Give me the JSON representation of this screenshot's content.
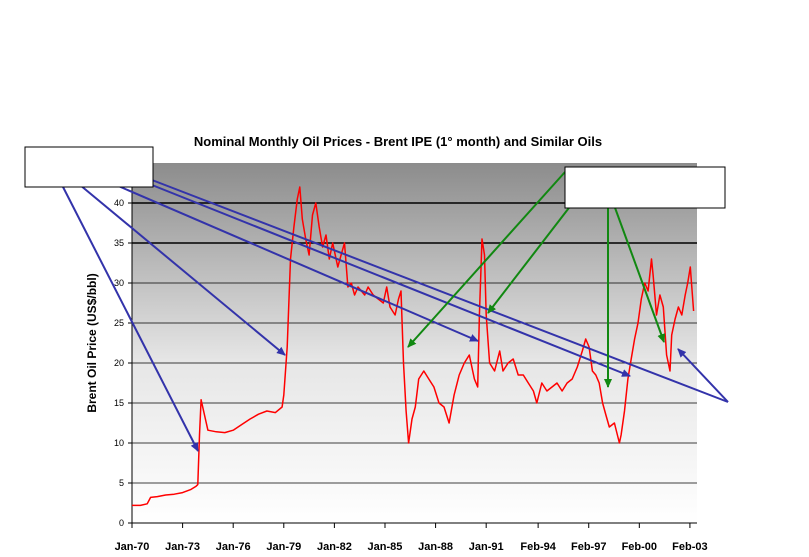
{
  "chart_data": {
    "type": "line",
    "title": "Nominal Monthly Oil Prices - Brent IPE (1° month) and Similar Oils",
    "ylabel": "Brent Oil Price (US$/bbl)",
    "xlabel": "",
    "ylim": [
      0,
      45
    ],
    "yticks": [
      0,
      5,
      10,
      15,
      20,
      25,
      30,
      35,
      40
    ],
    "xlim": [
      1970.0,
      2003.5
    ],
    "xtick_labels": [
      "Jan-70",
      "Jan-73",
      "Jan-76",
      "Jan-79",
      "Jan-82",
      "Jan-85",
      "Jan-88",
      "Jan-91",
      "Feb-94",
      "Feb-97",
      "Feb-00",
      "Feb-03"
    ],
    "xtick_values": [
      1970.0,
      1973.0,
      1976.0,
      1979.0,
      1982.0,
      1985.0,
      1988.0,
      1991.0,
      1994.08,
      1997.08,
      2000.08,
      2003.08
    ],
    "grid": "horizontal",
    "series_color": "#ff0000",
    "series": [
      {
        "x": [
          1970.0,
          1970.5,
          1970.9,
          1971.1,
          1971.5,
          1972.0,
          1972.5,
          1973.0,
          1973.5,
          1973.8,
          1973.9,
          1974.0,
          1974.1,
          1974.3,
          1974.5,
          1975.0,
          1975.5,
          1976.0,
          1976.5,
          1977.0,
          1977.5,
          1978.0,
          1978.5,
          1978.9,
          1979.0,
          1979.2,
          1979.4,
          1979.6,
          1979.8,
          1979.95,
          1980.1,
          1980.3,
          1980.5,
          1980.7,
          1980.9,
          1981.1,
          1981.3,
          1981.5,
          1981.7,
          1981.9,
          1982.0,
          1982.2,
          1982.4,
          1982.6,
          1982.8,
          1983.0,
          1983.2,
          1983.4,
          1983.6,
          1983.8,
          1984.0,
          1984.3,
          1984.6,
          1984.9,
          1985.1,
          1985.3,
          1985.6,
          1985.8,
          1985.95,
          1986.1,
          1986.25,
          1986.4,
          1986.6,
          1986.8,
          1987.0,
          1987.3,
          1987.6,
          1987.9,
          1988.2,
          1988.5,
          1988.8,
          1989.1,
          1989.4,
          1989.7,
          1990.0,
          1990.3,
          1990.5,
          1990.6,
          1990.75,
          1990.9,
          1991.0,
          1991.2,
          1991.5,
          1991.8,
          1992.0,
          1992.3,
          1992.6,
          1992.9,
          1993.2,
          1993.5,
          1993.8,
          1994.0,
          1994.3,
          1994.6,
          1994.9,
          1995.2,
          1995.5,
          1995.8,
          1996.1,
          1996.4,
          1996.7,
          1996.9,
          1997.1,
          1997.3,
          1997.5,
          1997.7,
          1997.9,
          1998.1,
          1998.3,
          1998.6,
          1998.9,
          1999.0,
          1999.2,
          1999.4,
          1999.6,
          1999.8,
          2000.0,
          2000.2,
          2000.4,
          2000.6,
          2000.8,
          2000.9,
          2001.1,
          2001.3,
          2001.5,
          2001.7,
          2001.9,
          2002.0,
          2002.2,
          2002.4,
          2002.6,
          2002.8,
          2002.95,
          2003.1,
          2003.3
        ],
        "y": [
          2.2,
          2.2,
          2.4,
          3.2,
          3.3,
          3.5,
          3.6,
          3.8,
          4.2,
          4.6,
          4.8,
          11.0,
          15.4,
          13.5,
          11.6,
          11.4,
          11.3,
          11.6,
          12.3,
          13.0,
          13.6,
          14.0,
          13.8,
          14.5,
          16.0,
          22.0,
          33.0,
          37.0,
          40.5,
          42.0,
          38.0,
          35.5,
          33.5,
          38.5,
          40.0,
          37.0,
          34.5,
          36.0,
          33.0,
          35.0,
          34.0,
          32.0,
          33.5,
          35.0,
          29.5,
          30.0,
          28.5,
          29.5,
          29.0,
          28.5,
          29.5,
          28.5,
          28.0,
          27.5,
          29.5,
          27.0,
          26.0,
          28.0,
          29.0,
          20.0,
          14.0,
          10.0,
          13.0,
          14.5,
          18.0,
          19.0,
          18.0,
          17.0,
          15.0,
          14.5,
          12.5,
          16.0,
          18.5,
          20.0,
          21.0,
          18.0,
          17.0,
          26.0,
          35.5,
          33.5,
          26.0,
          20.0,
          19.0,
          21.5,
          19.0,
          20.0,
          20.5,
          18.5,
          18.5,
          17.5,
          16.5,
          15.0,
          17.5,
          16.5,
          17.0,
          17.5,
          16.5,
          17.5,
          18.0,
          19.5,
          21.5,
          23.0,
          22.0,
          19.0,
          18.5,
          17.5,
          15.0,
          13.5,
          12.0,
          12.5,
          10.0,
          11.0,
          14.0,
          18.0,
          20.5,
          23.0,
          25.0,
          28.0,
          30.0,
          29.0,
          33.0,
          31.0,
          26.0,
          28.5,
          27.0,
          21.0,
          19.0,
          23.5,
          25.5,
          27.0,
          26.0,
          28.5,
          30.0,
          32.0,
          26.5
        ]
      }
    ]
  },
  "callouts": {
    "left_box_text": "",
    "right_box_text": ""
  }
}
